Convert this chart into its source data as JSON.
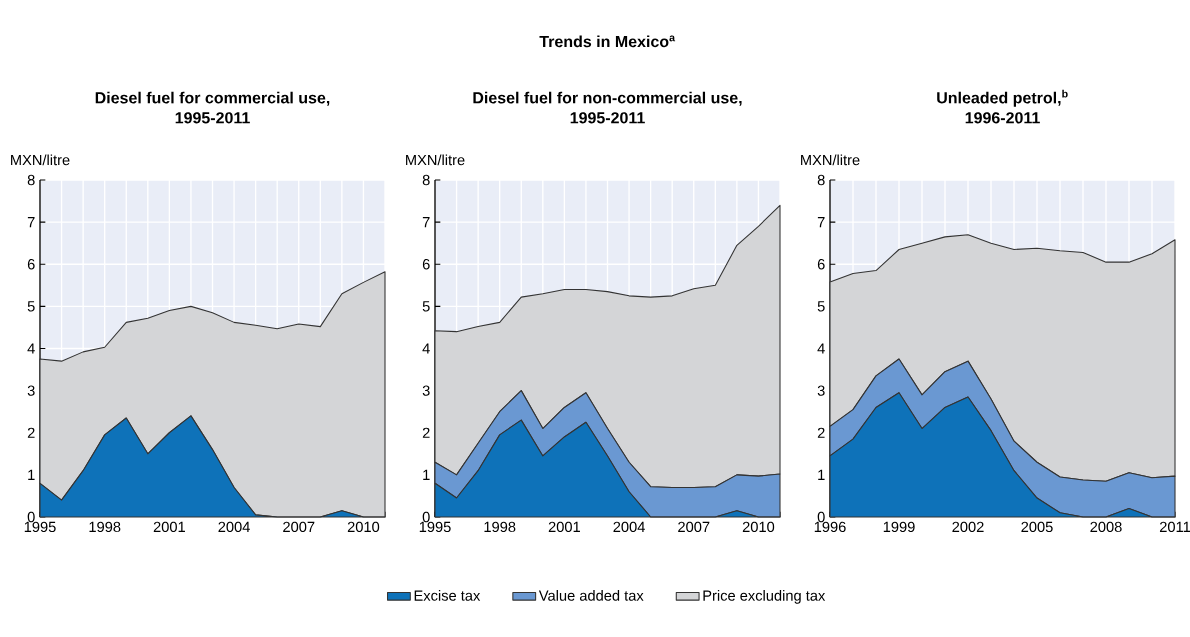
{
  "chart_data": [
    {
      "type": "area",
      "title": "Diesel fuel for commercial use,",
      "subtitle": "1995-2011",
      "ylabel": "MXN/litre",
      "stacked": true,
      "grid": true,
      "x": [
        1995,
        1996,
        1997,
        1998,
        1999,
        2000,
        2001,
        2002,
        2003,
        2004,
        2005,
        2006,
        2007,
        2008,
        2009,
        2010,
        2011
      ],
      "series": [
        {
          "color": "#0e72b9",
          "values": [
            0.8,
            0.4,
            1.1,
            1.95,
            2.35,
            1.5,
            2.0,
            2.4,
            1.6,
            0.7,
            0.05,
            0,
            0,
            0,
            0.15,
            0,
            0
          ]
        },
        {
          "color": "#d4d5d7",
          "values": [
            2.95,
            3.3,
            2.82,
            2.08,
            2.27,
            3.22,
            2.9,
            2.6,
            3.25,
            3.92,
            4.5,
            4.47,
            4.58,
            4.52,
            5.15,
            5.57,
            5.82
          ]
        }
      ],
      "xlim": [
        1995,
        2011
      ],
      "ylim": [
        0,
        8
      ],
      "yticks": [
        0,
        1,
        2,
        3,
        4,
        5,
        6,
        7,
        8
      ],
      "xticks": [
        1995,
        {
          "value": 1996,
          "label": null
        },
        {
          "value": 1997,
          "label": null
        },
        1998,
        {
          "value": 1999,
          "label": null
        },
        {
          "value": 2000,
          "label": null
        },
        2001,
        {
          "value": 2002,
          "label": null
        },
        {
          "value": 2003,
          "label": null
        },
        2004,
        {
          "value": 2005,
          "label": null
        },
        {
          "value": 2006,
          "label": null
        },
        2007,
        {
          "value": 2008,
          "label": null
        },
        {
          "value": 2009,
          "label": null
        },
        2010,
        {
          "value": 2011,
          "label": null
        }
      ]
    },
    {
      "type": "area",
      "title": "Diesel fuel for non-commercial use,",
      "subtitle": "1995-2011",
      "ylabel": "MXN/litre",
      "stacked": true,
      "grid": true,
      "legend": "bottom",
      "annotations": [
        "Trends in Mexico$^{a}$"
      ],
      "x": [
        1995,
        1996,
        1997,
        1998,
        1999,
        2000,
        2001,
        2002,
        2003,
        2004,
        2005,
        2006,
        2007,
        2008,
        2009,
        2010,
        2011
      ],
      "series": [
        {
          "name": "Excise tax",
          "color": "#0e72b9",
          "values": [
            0.8,
            0.45,
            1.1,
            1.95,
            2.3,
            1.45,
            1.9,
            2.25,
            1.45,
            0.6,
            0,
            0,
            0,
            0,
            0.15,
            0,
            0
          ]
        },
        {
          "name": "Value added tax",
          "color": "#6a98d2",
          "values": [
            0.5,
            0.55,
            0.65,
            0.55,
            0.7,
            0.65,
            0.7,
            0.7,
            0.65,
            0.7,
            0.72,
            0.7,
            0.7,
            0.72,
            0.85,
            0.97,
            1.02
          ]
        },
        {
          "name": "Price excluding tax",
          "color": "#d4d5d7",
          "values": [
            3.12,
            3.4,
            2.77,
            2.12,
            2.22,
            3.2,
            2.8,
            2.45,
            3.25,
            3.95,
            4.5,
            4.55,
            4.72,
            4.78,
            5.45,
            5.93,
            6.38
          ]
        }
      ],
      "xlim": [
        1995,
        2011
      ],
      "ylim": [
        0,
        8
      ],
      "yticks": [
        0,
        1,
        2,
        3,
        4,
        5,
        6,
        7,
        8
      ],
      "xticks": [
        1995,
        {
          "value": 1996,
          "label": null
        },
        {
          "value": 1997,
          "label": null
        },
        1998,
        {
          "value": 1999,
          "label": null
        },
        {
          "value": 2000,
          "label": null
        },
        2001,
        {
          "value": 2002,
          "label": null
        },
        {
          "value": 2003,
          "label": null
        },
        2004,
        {
          "value": 2005,
          "label": null
        },
        {
          "value": 2006,
          "label": null
        },
        2007,
        {
          "value": 2008,
          "label": null
        },
        {
          "value": 2009,
          "label": null
        },
        2010,
        {
          "value": 2011,
          "label": null
        }
      ]
    },
    {
      "type": "area",
      "title": "Unleaded petrol,$^{b}$",
      "subtitle": "1996-2011",
      "ylabel": "MXN/litre",
      "stacked": true,
      "grid": true,
      "x": [
        1996,
        1997,
        1998,
        1999,
        2000,
        2001,
        2002,
        2003,
        2004,
        2005,
        2006,
        2007,
        2008,
        2009,
        2010,
        2011
      ],
      "series": [
        {
          "color": "#0e72b9",
          "values": [
            1.45,
            1.85,
            2.6,
            2.95,
            2.1,
            2.6,
            2.85,
            2.05,
            1.1,
            0.45,
            0.1,
            0,
            0,
            0.2,
            0,
            0
          ]
        },
        {
          "color": "#6a98d2",
          "values": [
            0.7,
            0.7,
            0.75,
            0.8,
            0.8,
            0.85,
            0.85,
            0.75,
            0.7,
            0.85,
            0.85,
            0.88,
            0.85,
            0.85,
            0.93,
            0.97
          ]
        },
        {
          "color": "#d4d5d7",
          "values": [
            3.43,
            3.23,
            2.5,
            2.6,
            3.6,
            3.2,
            3.0,
            3.7,
            4.55,
            5.08,
            5.37,
            5.4,
            5.2,
            5.0,
            5.32,
            5.61
          ]
        }
      ],
      "xlim": [
        1996,
        2011
      ],
      "ylim": [
        0,
        8
      ],
      "yticks": [
        0,
        1,
        2,
        3,
        4,
        5,
        6,
        7,
        8
      ],
      "xticks": [
        1996,
        {
          "value": 1997,
          "label": null
        },
        {
          "value": 1998,
          "label": null
        },
        1999,
        {
          "value": 2000,
          "label": null
        },
        {
          "value": 2001,
          "label": null
        },
        2002,
        {
          "value": 2003,
          "label": null
        },
        {
          "value": 2004,
          "label": null
        },
        2005,
        {
          "value": 2006,
          "label": null
        },
        {
          "value": 2007,
          "label": null
        },
        2008,
        {
          "value": 2009,
          "label": null
        },
        {
          "value": 2010,
          "label": null
        },
        2011
      ]
    }
  ]
}
